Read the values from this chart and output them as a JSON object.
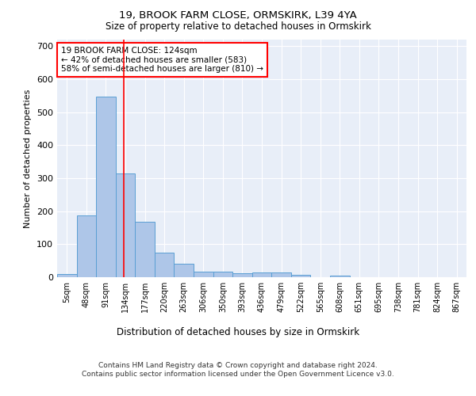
{
  "title1": "19, BROOK FARM CLOSE, ORMSKIRK, L39 4YA",
  "title2": "Size of property relative to detached houses in Ormskirk",
  "xlabel": "Distribution of detached houses by size in Ormskirk",
  "ylabel": "Number of detached properties",
  "footer": "Contains HM Land Registry data © Crown copyright and database right 2024.\nContains public sector information licensed under the Open Government Licence v3.0.",
  "bin_labels": [
    "5sqm",
    "48sqm",
    "91sqm",
    "134sqm",
    "177sqm",
    "220sqm",
    "263sqm",
    "306sqm",
    "350sqm",
    "393sqm",
    "436sqm",
    "479sqm",
    "522sqm",
    "565sqm",
    "608sqm",
    "651sqm",
    "695sqm",
    "738sqm",
    "781sqm",
    "824sqm",
    "867sqm"
  ],
  "bar_heights": [
    10,
    188,
    548,
    315,
    168,
    75,
    40,
    18,
    18,
    12,
    14,
    14,
    8,
    0,
    5,
    0,
    0,
    0,
    0,
    0,
    0
  ],
  "bar_color": "#aec6e8",
  "bar_edge_color": "#5a9fd4",
  "vline_x": 2.93,
  "vline_color": "red",
  "annotation_text": "19 BROOK FARM CLOSE: 124sqm\n← 42% of detached houses are smaller (583)\n58% of semi-detached houses are larger (810) →",
  "annotation_box_color": "white",
  "annotation_box_edge": "red",
  "ylim": [
    0,
    720
  ],
  "yticks": [
    0,
    100,
    200,
    300,
    400,
    500,
    600,
    700
  ],
  "background_color": "#e8eef8",
  "grid_color": "white",
  "title1_fontsize": 9.5,
  "title2_fontsize": 8.5,
  "ylabel_fontsize": 8,
  "xlabel_fontsize": 8.5,
  "tick_fontsize": 7,
  "footer_fontsize": 6.5,
  "annot_fontsize": 7.5
}
